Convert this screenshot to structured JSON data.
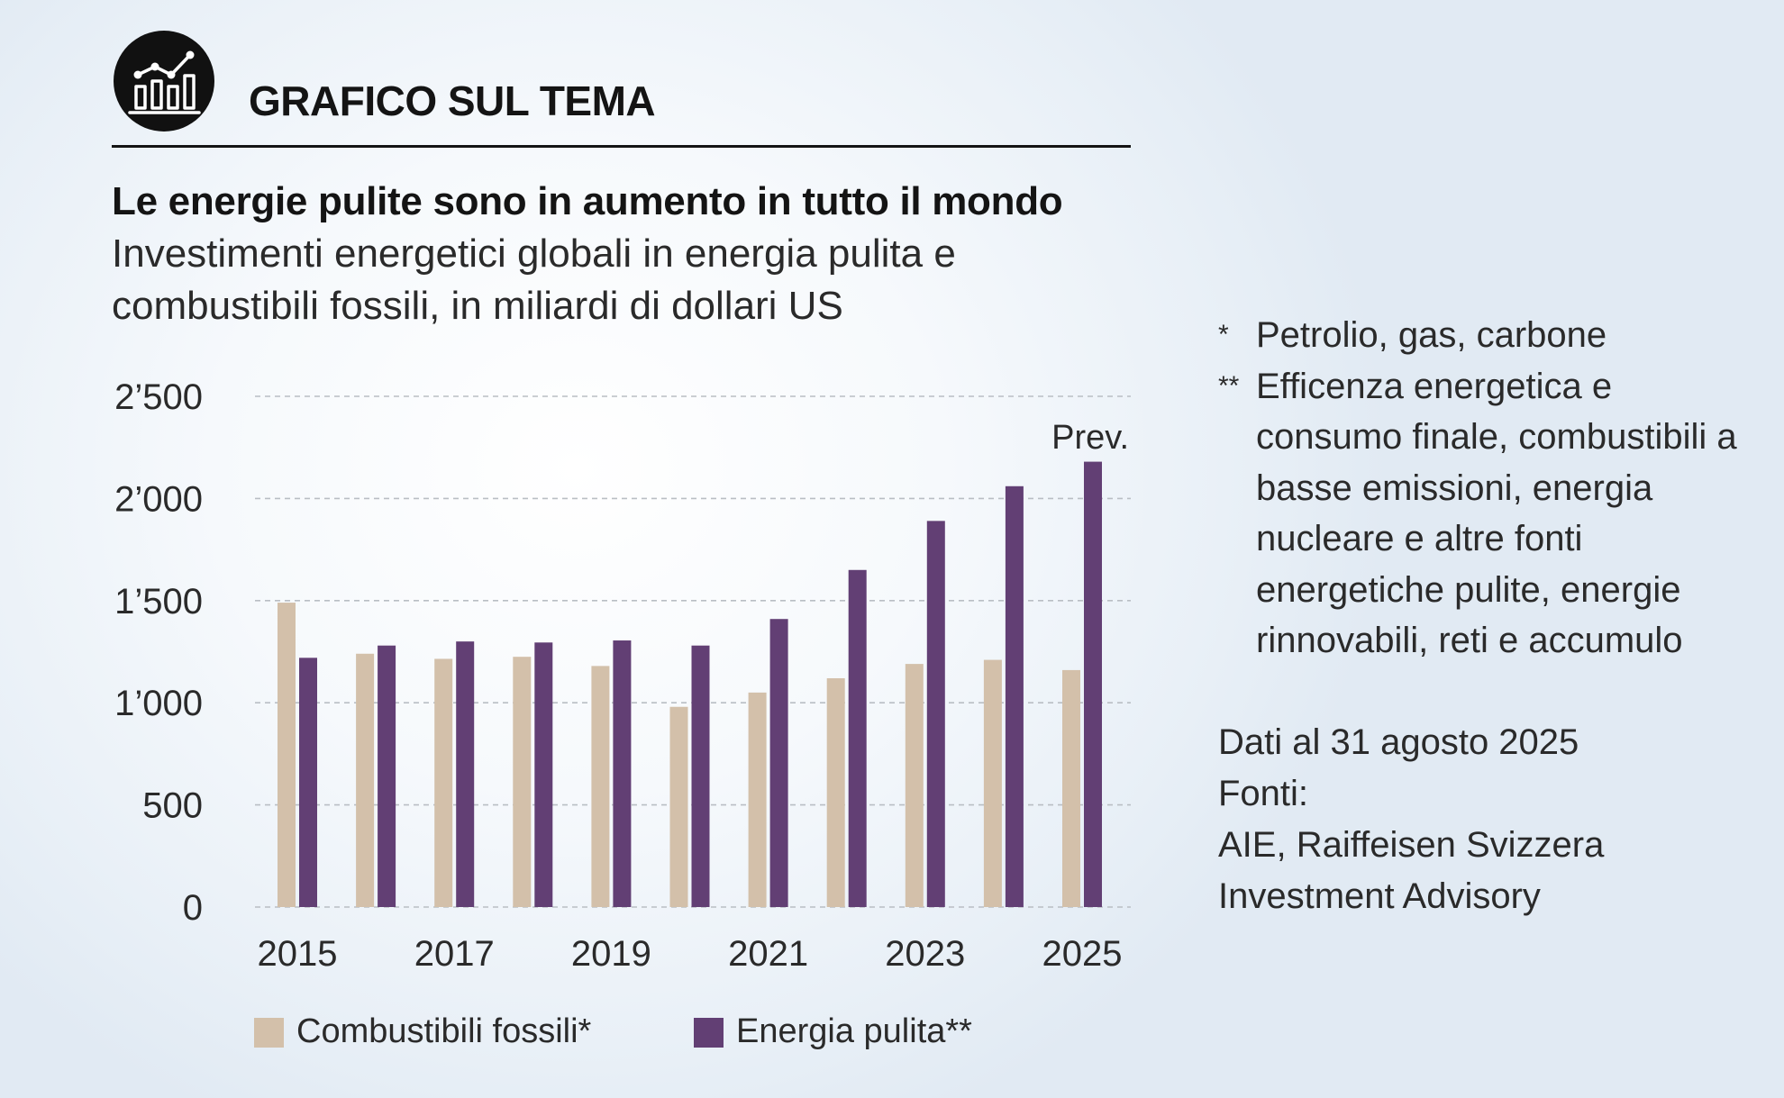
{
  "header": {
    "title": "GRAFICO SUL TEMA",
    "icon": "bar-chart-icon"
  },
  "colors": {
    "fossil": "#d3c0aa",
    "clean": "#623f74",
    "grid": "#b9bec4",
    "text": "#2a2a2a",
    "dark": "#141414"
  },
  "chart_data": {
    "type": "bar",
    "title": "Le energie pulite sono in aumento in tutto il mondo",
    "subtitle": "Investimenti energetici globali in energia pulita e combustibili fossili, in miliardi di dollari US",
    "xlabel": "",
    "ylabel": "",
    "ylim": [
      0,
      2500
    ],
    "yticks": [
      0,
      500,
      1000,
      1500,
      2000,
      2500
    ],
    "ytick_labels": [
      "0",
      "500",
      "1’000",
      "1’500",
      "2’000",
      "2’500"
    ],
    "grid": true,
    "categories": [
      "2015",
      "2016",
      "2017",
      "2018",
      "2019",
      "2020",
      "2021",
      "2022",
      "2023",
      "2024",
      "2025"
    ],
    "xtick_labels": [
      "2015",
      "",
      "2017",
      "",
      "2019",
      "",
      "2021",
      "",
      "2023",
      "",
      "2025"
    ],
    "series": [
      {
        "name": "Combustibili fossili*",
        "key": "fossil",
        "values": [
          1490,
          1240,
          1215,
          1225,
          1180,
          980,
          1050,
          1120,
          1190,
          1210,
          1160
        ]
      },
      {
        "name": "Energia pulita**",
        "key": "clean",
        "values": [
          1220,
          1280,
          1300,
          1295,
          1305,
          1280,
          1410,
          1650,
          1890,
          2060,
          2180
        ]
      }
    ],
    "annotation": "Prev.",
    "annotation_category": "2025",
    "legend_position": "bottom"
  },
  "legend": {
    "items": [
      {
        "label": "Combustibili fossili*",
        "key": "fossil"
      },
      {
        "label": "Energia pulita**",
        "key": "clean"
      }
    ]
  },
  "notes": [
    {
      "marker": "*",
      "text": "Petrolio, gas, carbone"
    },
    {
      "marker": "**",
      "text": "Efficenza energetica e consumo finale, combustibili a basse emissioni, energia nucleare e altre fonti energetiche pulite, energie rinnovabili, reti e accumulo"
    }
  ],
  "meta": {
    "date": "Dati al 31 agosto 2025",
    "sources_label": "Fonti:",
    "sources_line1": "AIE, Raiffeisen Svizzera",
    "sources_line2": "Investment Advisory"
  }
}
